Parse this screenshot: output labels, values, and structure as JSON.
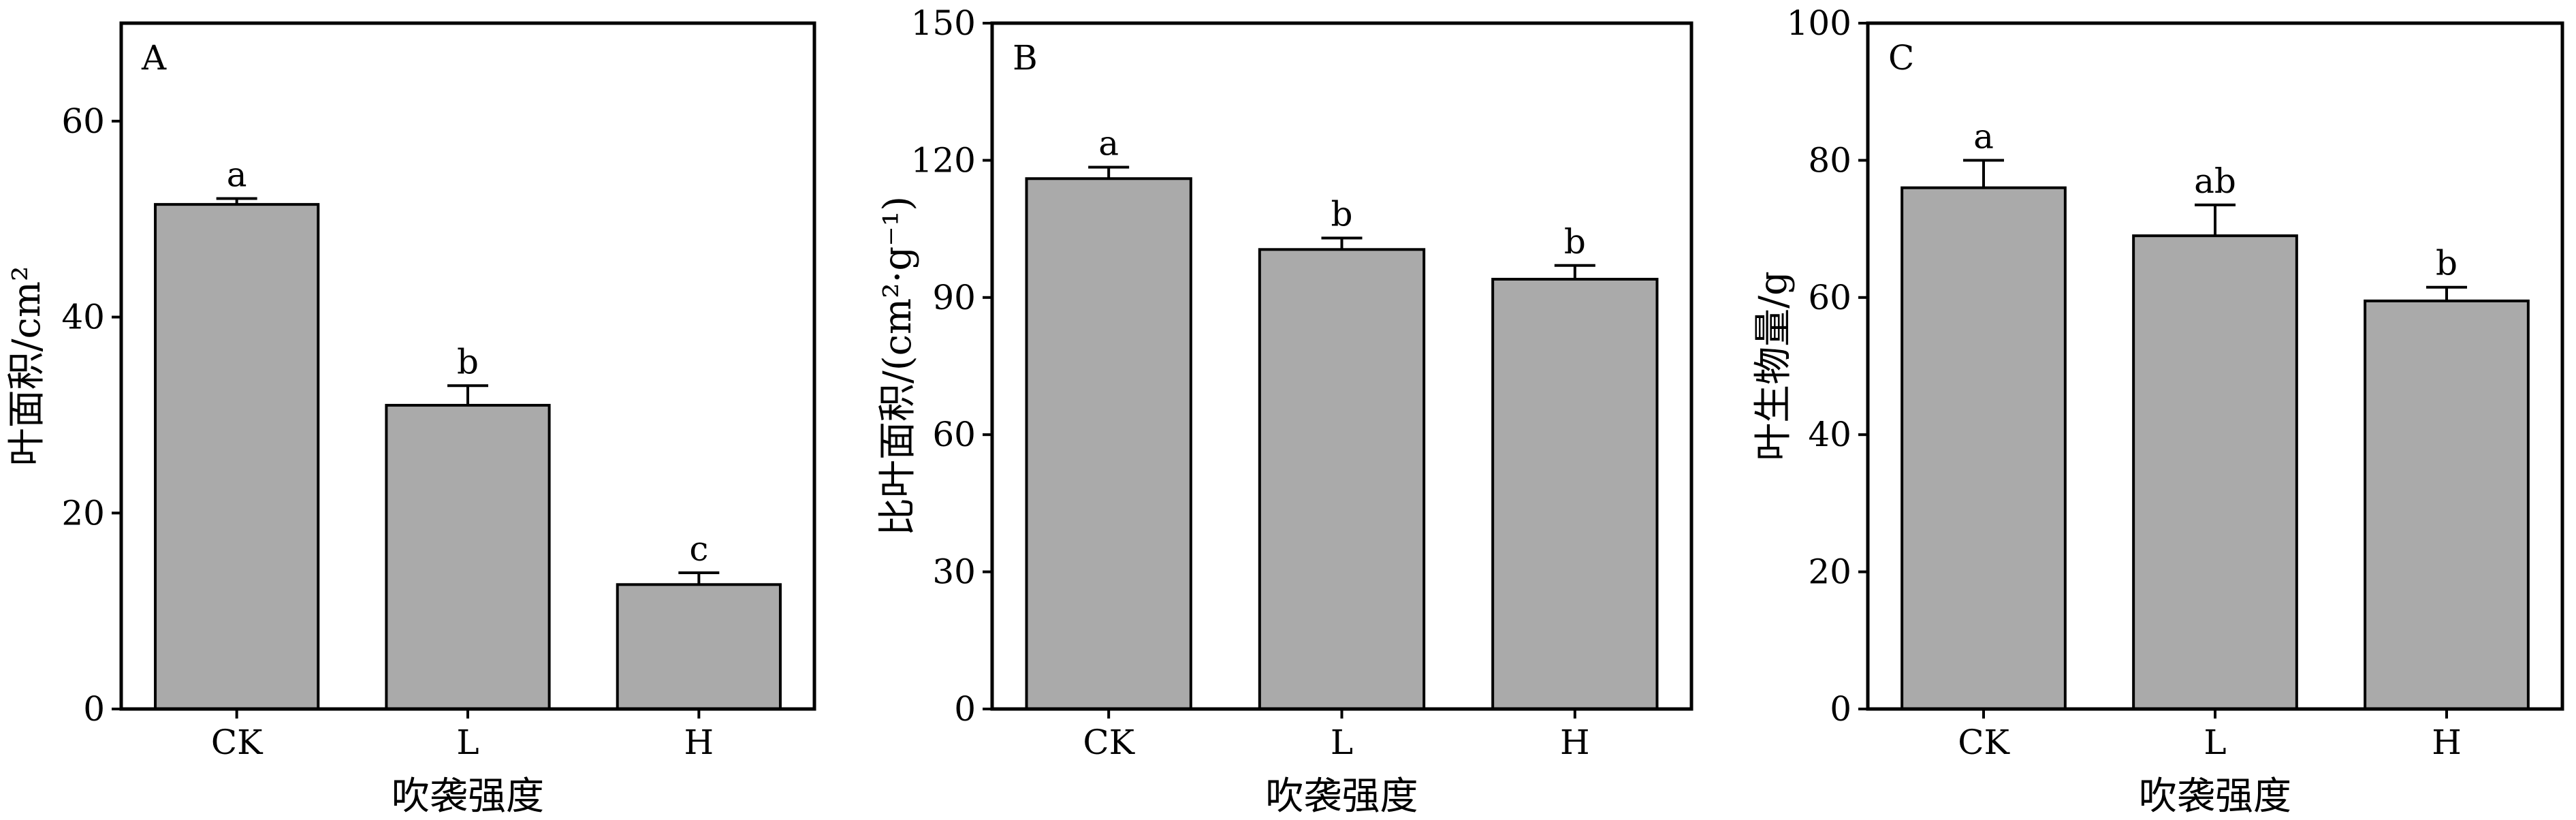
{
  "chart_data": [
    {
      "type": "bar",
      "panel_label": "A",
      "categories": [
        "CK",
        "L",
        "H"
      ],
      "values": [
        51.5,
        31.0,
        12.7
      ],
      "errors": [
        0.6,
        2.0,
        1.2
      ],
      "significance": [
        "a",
        "b",
        "c"
      ],
      "xlabel": "吹袭强度",
      "ylabel": "叶面积/cm²",
      "ylim": [
        0,
        70
      ],
      "yticks": [
        0,
        20,
        40,
        60
      ],
      "bar_color": "#aaaaaa",
      "grid": false
    },
    {
      "type": "bar",
      "panel_label": "B",
      "categories": [
        "CK",
        "L",
        "H"
      ],
      "values": [
        116.0,
        100.5,
        94.0
      ],
      "errors": [
        2.5,
        2.5,
        3.0
      ],
      "significance": [
        "a",
        "b",
        "b"
      ],
      "xlabel": "吹袭强度",
      "ylabel": "比叶面积/(cm²·g⁻¹)",
      "ylim": [
        0,
        150
      ],
      "yticks": [
        0,
        30,
        60,
        90,
        120,
        150
      ],
      "bar_color": "#aaaaaa",
      "grid": false
    },
    {
      "type": "bar",
      "panel_label": "C",
      "categories": [
        "CK",
        "L",
        "H"
      ],
      "values": [
        76.0,
        69.0,
        59.5
      ],
      "errors": [
        4.0,
        4.5,
        2.0
      ],
      "significance": [
        "a",
        "ab",
        "b"
      ],
      "xlabel": "吹袭强度",
      "ylabel": "叶生物量/g",
      "ylim": [
        0,
        100
      ],
      "yticks": [
        0,
        20,
        40,
        60,
        80,
        100
      ],
      "bar_color": "#aaaaaa",
      "grid": false
    }
  ]
}
